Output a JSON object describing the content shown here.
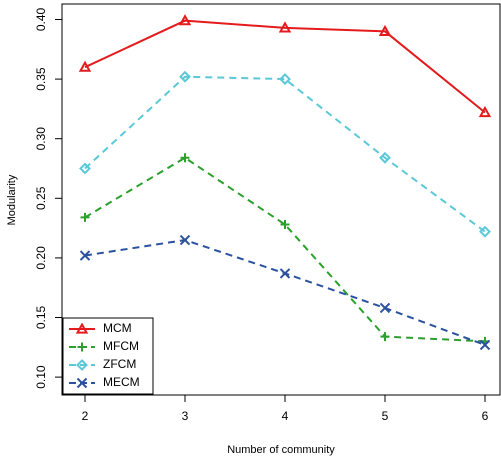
{
  "chart_data": {
    "type": "line",
    "xlabel": "Number of community",
    "ylabel": "Modularity",
    "x": [
      2,
      3,
      4,
      5,
      6
    ],
    "series": [
      {
        "name": "MCM",
        "color": "#e41a1c",
        "marker": "triangle",
        "dash": "solid",
        "values": [
          0.36,
          0.399,
          0.393,
          0.39,
          0.322
        ]
      },
      {
        "name": "MFCM",
        "color": "#2ca02c",
        "marker": "plus",
        "dash": "dashed",
        "values": [
          0.234,
          0.284,
          0.228,
          0.134,
          0.13
        ]
      },
      {
        "name": "ZFCM",
        "color": "#5bc8d8",
        "marker": "diamond",
        "dash": "dashed",
        "values": [
          0.275,
          0.352,
          0.35,
          0.284,
          0.222
        ]
      },
      {
        "name": "MECM",
        "color": "#2a52a0",
        "marker": "cross",
        "dash": "dashed",
        "values": [
          0.202,
          0.215,
          0.187,
          0.158,
          0.127
        ]
      }
    ],
    "xlim": [
      1.77,
      6.15
    ],
    "xticks": [
      2,
      3,
      4,
      5,
      6
    ],
    "ylim": [
      0.085,
      0.413
    ],
    "yticks": [
      {
        "value": 0.1,
        "label": "0.10"
      },
      {
        "value": 0.15,
        "label": "0.15"
      },
      {
        "value": 0.2,
        "label": "0.20"
      },
      {
        "value": 0.25,
        "label": "0.25"
      },
      {
        "value": 0.3,
        "label": "0.30"
      },
      {
        "value": 0.35,
        "label": "0.35"
      },
      {
        "value": 0.4,
        "label": "0.40"
      }
    ],
    "legend": "bottom-left"
  }
}
